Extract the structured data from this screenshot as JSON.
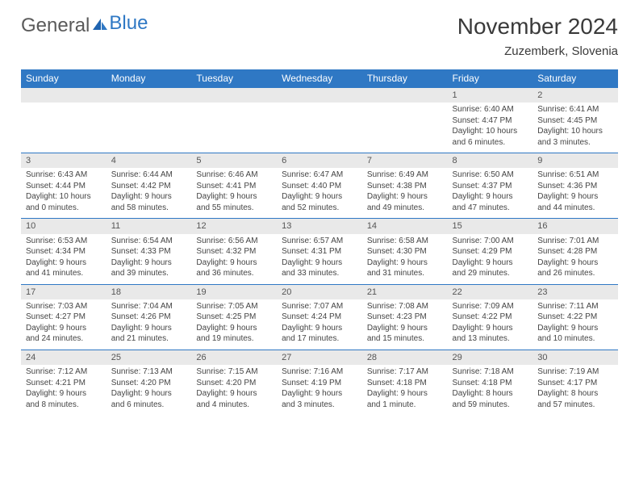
{
  "brand": {
    "part1": "General",
    "part2": "Blue"
  },
  "title": "November 2024",
  "location": "Zuzemberk, Slovenia",
  "weekdays": [
    "Sunday",
    "Monday",
    "Tuesday",
    "Wednesday",
    "Thursday",
    "Friday",
    "Saturday"
  ],
  "colors": {
    "header_bg": "#2f78c4",
    "header_text": "#ffffff",
    "daynum_bg": "#e9e9e9",
    "border": "#2f78c4",
    "text": "#444444"
  },
  "weeks": [
    [
      {
        "n": "",
        "sunrise": "",
        "sunset": "",
        "daylight": ""
      },
      {
        "n": "",
        "sunrise": "",
        "sunset": "",
        "daylight": ""
      },
      {
        "n": "",
        "sunrise": "",
        "sunset": "",
        "daylight": ""
      },
      {
        "n": "",
        "sunrise": "",
        "sunset": "",
        "daylight": ""
      },
      {
        "n": "",
        "sunrise": "",
        "sunset": "",
        "daylight": ""
      },
      {
        "n": "1",
        "sunrise": "Sunrise: 6:40 AM",
        "sunset": "Sunset: 4:47 PM",
        "daylight": "Daylight: 10 hours and 6 minutes."
      },
      {
        "n": "2",
        "sunrise": "Sunrise: 6:41 AM",
        "sunset": "Sunset: 4:45 PM",
        "daylight": "Daylight: 10 hours and 3 minutes."
      }
    ],
    [
      {
        "n": "3",
        "sunrise": "Sunrise: 6:43 AM",
        "sunset": "Sunset: 4:44 PM",
        "daylight": "Daylight: 10 hours and 0 minutes."
      },
      {
        "n": "4",
        "sunrise": "Sunrise: 6:44 AM",
        "sunset": "Sunset: 4:42 PM",
        "daylight": "Daylight: 9 hours and 58 minutes."
      },
      {
        "n": "5",
        "sunrise": "Sunrise: 6:46 AM",
        "sunset": "Sunset: 4:41 PM",
        "daylight": "Daylight: 9 hours and 55 minutes."
      },
      {
        "n": "6",
        "sunrise": "Sunrise: 6:47 AM",
        "sunset": "Sunset: 4:40 PM",
        "daylight": "Daylight: 9 hours and 52 minutes."
      },
      {
        "n": "7",
        "sunrise": "Sunrise: 6:49 AM",
        "sunset": "Sunset: 4:38 PM",
        "daylight": "Daylight: 9 hours and 49 minutes."
      },
      {
        "n": "8",
        "sunrise": "Sunrise: 6:50 AM",
        "sunset": "Sunset: 4:37 PM",
        "daylight": "Daylight: 9 hours and 47 minutes."
      },
      {
        "n": "9",
        "sunrise": "Sunrise: 6:51 AM",
        "sunset": "Sunset: 4:36 PM",
        "daylight": "Daylight: 9 hours and 44 minutes."
      }
    ],
    [
      {
        "n": "10",
        "sunrise": "Sunrise: 6:53 AM",
        "sunset": "Sunset: 4:34 PM",
        "daylight": "Daylight: 9 hours and 41 minutes."
      },
      {
        "n": "11",
        "sunrise": "Sunrise: 6:54 AM",
        "sunset": "Sunset: 4:33 PM",
        "daylight": "Daylight: 9 hours and 39 minutes."
      },
      {
        "n": "12",
        "sunrise": "Sunrise: 6:56 AM",
        "sunset": "Sunset: 4:32 PM",
        "daylight": "Daylight: 9 hours and 36 minutes."
      },
      {
        "n": "13",
        "sunrise": "Sunrise: 6:57 AM",
        "sunset": "Sunset: 4:31 PM",
        "daylight": "Daylight: 9 hours and 33 minutes."
      },
      {
        "n": "14",
        "sunrise": "Sunrise: 6:58 AM",
        "sunset": "Sunset: 4:30 PM",
        "daylight": "Daylight: 9 hours and 31 minutes."
      },
      {
        "n": "15",
        "sunrise": "Sunrise: 7:00 AM",
        "sunset": "Sunset: 4:29 PM",
        "daylight": "Daylight: 9 hours and 29 minutes."
      },
      {
        "n": "16",
        "sunrise": "Sunrise: 7:01 AM",
        "sunset": "Sunset: 4:28 PM",
        "daylight": "Daylight: 9 hours and 26 minutes."
      }
    ],
    [
      {
        "n": "17",
        "sunrise": "Sunrise: 7:03 AM",
        "sunset": "Sunset: 4:27 PM",
        "daylight": "Daylight: 9 hours and 24 minutes."
      },
      {
        "n": "18",
        "sunrise": "Sunrise: 7:04 AM",
        "sunset": "Sunset: 4:26 PM",
        "daylight": "Daylight: 9 hours and 21 minutes."
      },
      {
        "n": "19",
        "sunrise": "Sunrise: 7:05 AM",
        "sunset": "Sunset: 4:25 PM",
        "daylight": "Daylight: 9 hours and 19 minutes."
      },
      {
        "n": "20",
        "sunrise": "Sunrise: 7:07 AM",
        "sunset": "Sunset: 4:24 PM",
        "daylight": "Daylight: 9 hours and 17 minutes."
      },
      {
        "n": "21",
        "sunrise": "Sunrise: 7:08 AM",
        "sunset": "Sunset: 4:23 PM",
        "daylight": "Daylight: 9 hours and 15 minutes."
      },
      {
        "n": "22",
        "sunrise": "Sunrise: 7:09 AM",
        "sunset": "Sunset: 4:22 PM",
        "daylight": "Daylight: 9 hours and 13 minutes."
      },
      {
        "n": "23",
        "sunrise": "Sunrise: 7:11 AM",
        "sunset": "Sunset: 4:22 PM",
        "daylight": "Daylight: 9 hours and 10 minutes."
      }
    ],
    [
      {
        "n": "24",
        "sunrise": "Sunrise: 7:12 AM",
        "sunset": "Sunset: 4:21 PM",
        "daylight": "Daylight: 9 hours and 8 minutes."
      },
      {
        "n": "25",
        "sunrise": "Sunrise: 7:13 AM",
        "sunset": "Sunset: 4:20 PM",
        "daylight": "Daylight: 9 hours and 6 minutes."
      },
      {
        "n": "26",
        "sunrise": "Sunrise: 7:15 AM",
        "sunset": "Sunset: 4:20 PM",
        "daylight": "Daylight: 9 hours and 4 minutes."
      },
      {
        "n": "27",
        "sunrise": "Sunrise: 7:16 AM",
        "sunset": "Sunset: 4:19 PM",
        "daylight": "Daylight: 9 hours and 3 minutes."
      },
      {
        "n": "28",
        "sunrise": "Sunrise: 7:17 AM",
        "sunset": "Sunset: 4:18 PM",
        "daylight": "Daylight: 9 hours and 1 minute."
      },
      {
        "n": "29",
        "sunrise": "Sunrise: 7:18 AM",
        "sunset": "Sunset: 4:18 PM",
        "daylight": "Daylight: 8 hours and 59 minutes."
      },
      {
        "n": "30",
        "sunrise": "Sunrise: 7:19 AM",
        "sunset": "Sunset: 4:17 PM",
        "daylight": "Daylight: 8 hours and 57 minutes."
      }
    ]
  ]
}
